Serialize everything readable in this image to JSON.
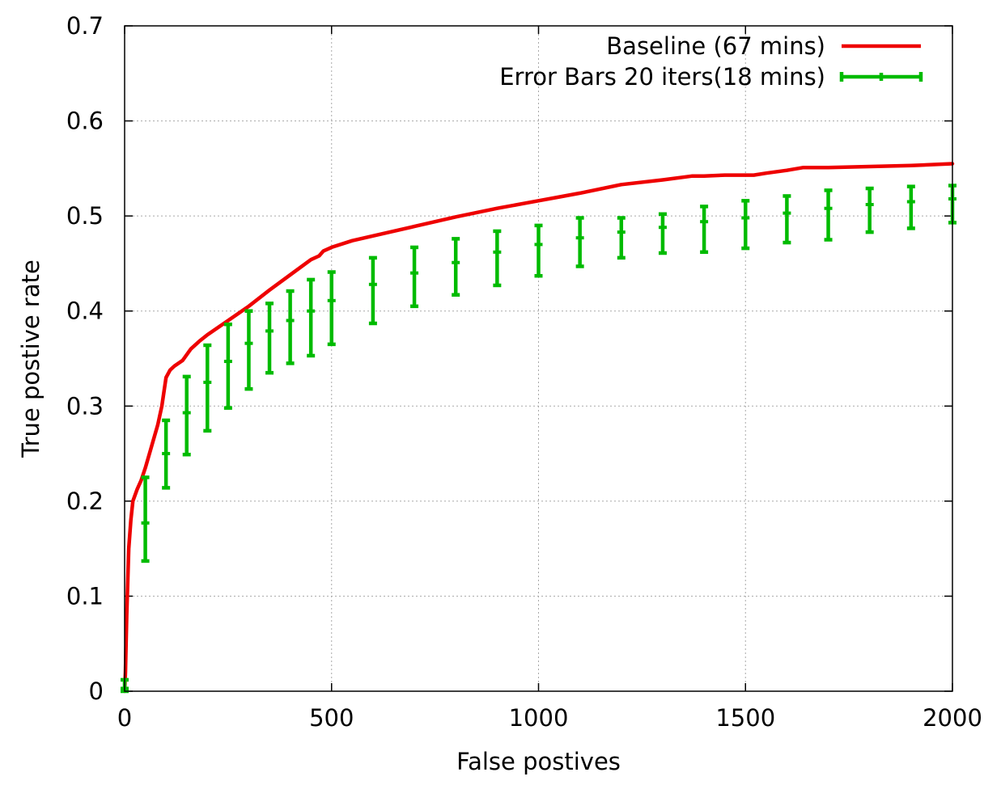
{
  "chart_data": {
    "type": "line",
    "xlabel": "False postives",
    "ylabel": "True postive rate",
    "xlim": [
      0,
      2000
    ],
    "ylim": [
      0,
      0.7
    ],
    "xticks": [
      0,
      500,
      1000,
      1500,
      2000
    ],
    "xtick_labels": [
      "0",
      "500",
      "1000",
      "1500",
      "2000"
    ],
    "yticks": [
      0,
      0.1,
      0.2,
      0.3,
      0.4,
      0.5,
      0.6,
      0.7
    ],
    "ytick_labels": [
      "0",
      "0.1",
      "0.2",
      "0.3",
      "0.4",
      "0.5",
      "0.6",
      "0.7"
    ],
    "grid": true,
    "legend_position": "top-right",
    "series": [
      {
        "name": "Baseline (67 mins)",
        "style": "line",
        "color": "#ee0000",
        "x": [
          0,
          2,
          5,
          10,
          15,
          20,
          30,
          40,
          50,
          60,
          70,
          80,
          90,
          100,
          110,
          120,
          140,
          160,
          180,
          200,
          250,
          300,
          350,
          400,
          450,
          470,
          480,
          500,
          550,
          600,
          700,
          800,
          900,
          1000,
          1050,
          1100,
          1200,
          1300,
          1370,
          1400,
          1450,
          1520,
          1550,
          1600,
          1640,
          1700,
          1800,
          1900,
          2000
        ],
        "y": [
          0,
          0.02,
          0.08,
          0.15,
          0.18,
          0.2,
          0.212,
          0.222,
          0.235,
          0.25,
          0.265,
          0.28,
          0.3,
          0.33,
          0.338,
          0.342,
          0.348,
          0.36,
          0.368,
          0.375,
          0.39,
          0.405,
          0.422,
          0.438,
          0.454,
          0.458,
          0.463,
          0.467,
          0.474,
          0.479,
          0.489,
          0.499,
          0.508,
          0.516,
          0.52,
          0.524,
          0.533,
          0.538,
          0.542,
          0.542,
          0.543,
          0.543,
          0.545,
          0.548,
          0.551,
          0.551,
          0.552,
          0.553,
          0.555
        ]
      },
      {
        "name": "Error Bars 20 iters(18 mins)",
        "style": "errorbar",
        "color": "#00bb00",
        "x": [
          0,
          50,
          100,
          150,
          200,
          250,
          300,
          350,
          400,
          450,
          500,
          600,
          700,
          800,
          900,
          1000,
          1100,
          1200,
          1300,
          1400,
          1500,
          1600,
          1700,
          1800,
          1900,
          2000
        ],
        "y": [
          0.003,
          0.177,
          0.25,
          0.293,
          0.325,
          0.347,
          0.366,
          0.379,
          0.39,
          0.4,
          0.411,
          0.428,
          0.44,
          0.451,
          0.462,
          0.47,
          0.477,
          0.483,
          0.488,
          0.494,
          0.498,
          0.503,
          0.508,
          0.512,
          0.515,
          0.518
        ],
        "y_low": [
          0,
          0.137,
          0.214,
          0.249,
          0.274,
          0.298,
          0.318,
          0.335,
          0.345,
          0.353,
          0.365,
          0.387,
          0.405,
          0.417,
          0.427,
          0.437,
          0.447,
          0.456,
          0.461,
          0.462,
          0.466,
          0.472,
          0.475,
          0.483,
          0.487,
          0.493
        ],
        "y_high": [
          0.012,
          0.225,
          0.285,
          0.331,
          0.364,
          0.386,
          0.4,
          0.408,
          0.421,
          0.433,
          0.441,
          0.456,
          0.467,
          0.476,
          0.484,
          0.49,
          0.498,
          0.498,
          0.502,
          0.51,
          0.516,
          0.521,
          0.527,
          0.529,
          0.531,
          0.532
        ]
      }
    ]
  }
}
